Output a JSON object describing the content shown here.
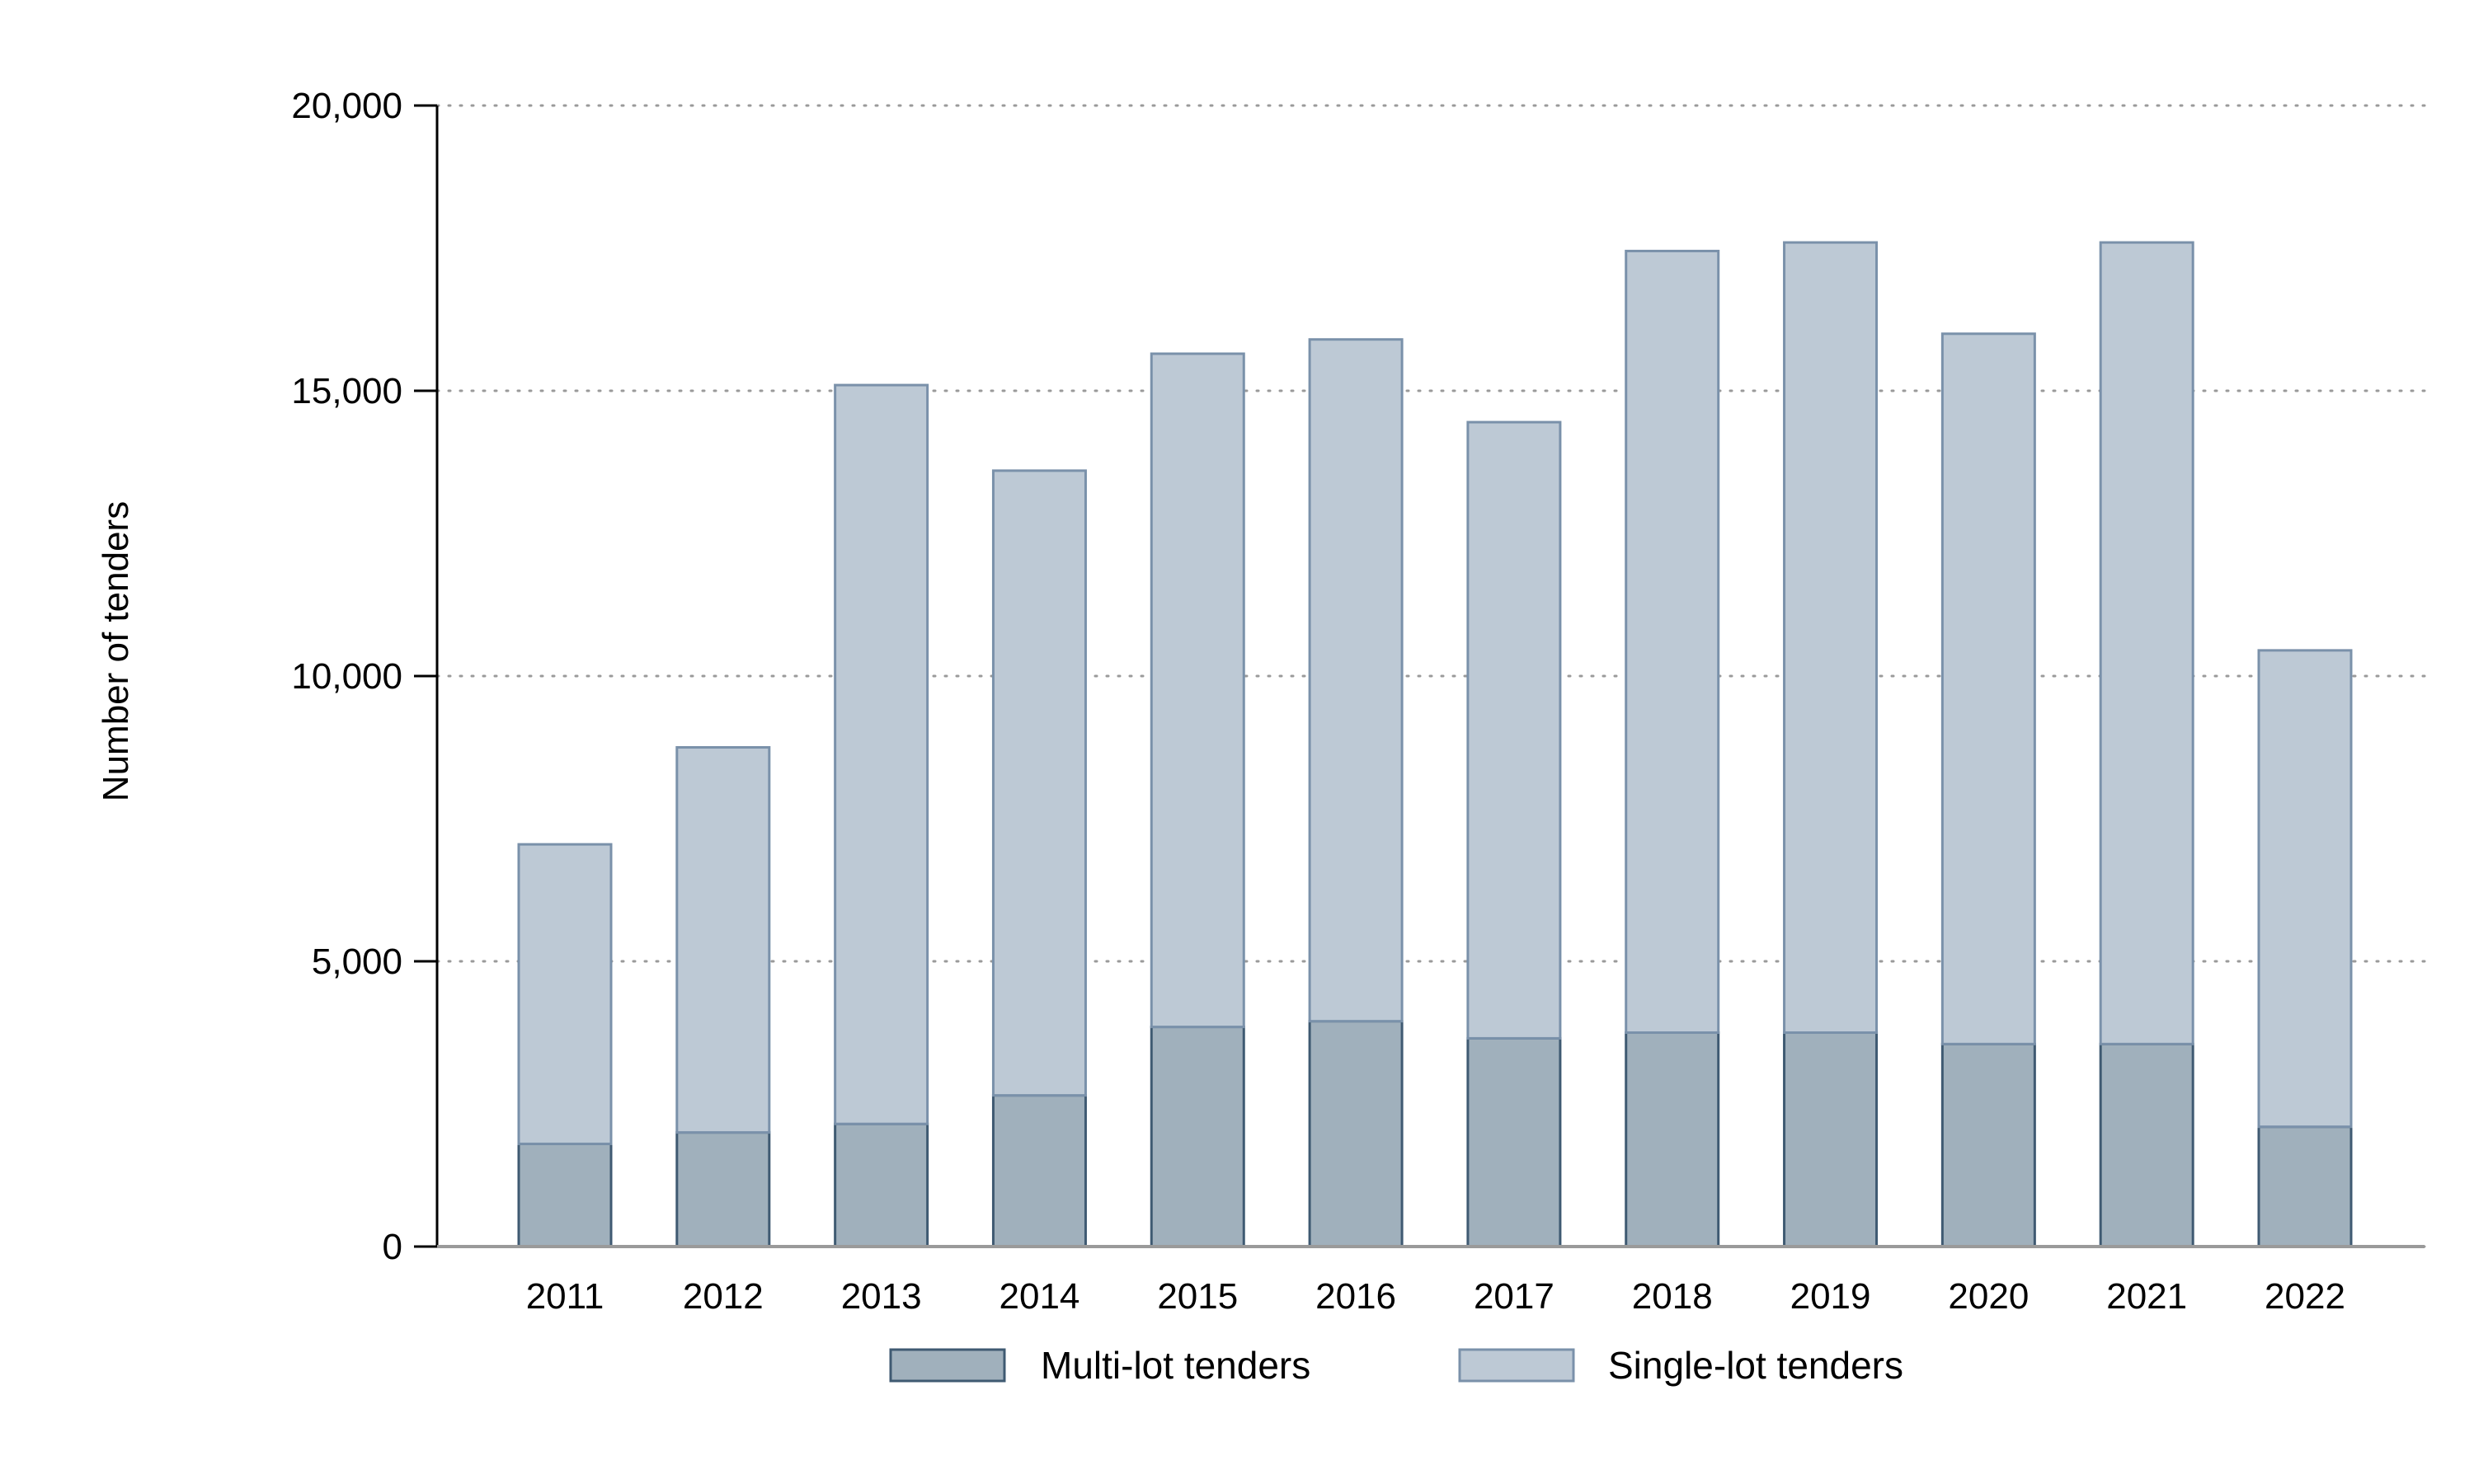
{
  "chart_data": {
    "type": "bar",
    "stacked": true,
    "title": "",
    "xlabel": "",
    "ylabel": "Number of tenders",
    "categories": [
      "2011",
      "2012",
      "2013",
      "2014",
      "2015",
      "2016",
      "2017",
      "2018",
      "2019",
      "2020",
      "2021",
      "2022"
    ],
    "series": [
      {
        "name": "Multi-lot tenders",
        "color": "#a0b0bc",
        "stroke": "#3f5a72",
        "values": [
          1800,
          2000,
          2150,
          2650,
          3850,
          3950,
          3650,
          3750,
          3750,
          3550,
          3550,
          2100
        ]
      },
      {
        "name": "Single-lot tenders",
        "color": "#bdc9d5",
        "stroke": "#7a91aa",
        "values": [
          5250,
          6750,
          12950,
          10950,
          11800,
          11950,
          10800,
          13700,
          13850,
          12450,
          14050,
          8350
        ]
      }
    ],
    "ylim": [
      0,
      20000
    ],
    "yticks": [
      0,
      5000,
      10000,
      15000,
      20000
    ],
    "ytick_labels": [
      "0",
      "5,000",
      "10,000",
      "15,000",
      "20,000"
    ],
    "grid": "horizontal-dotted",
    "legend": "bottom"
  }
}
